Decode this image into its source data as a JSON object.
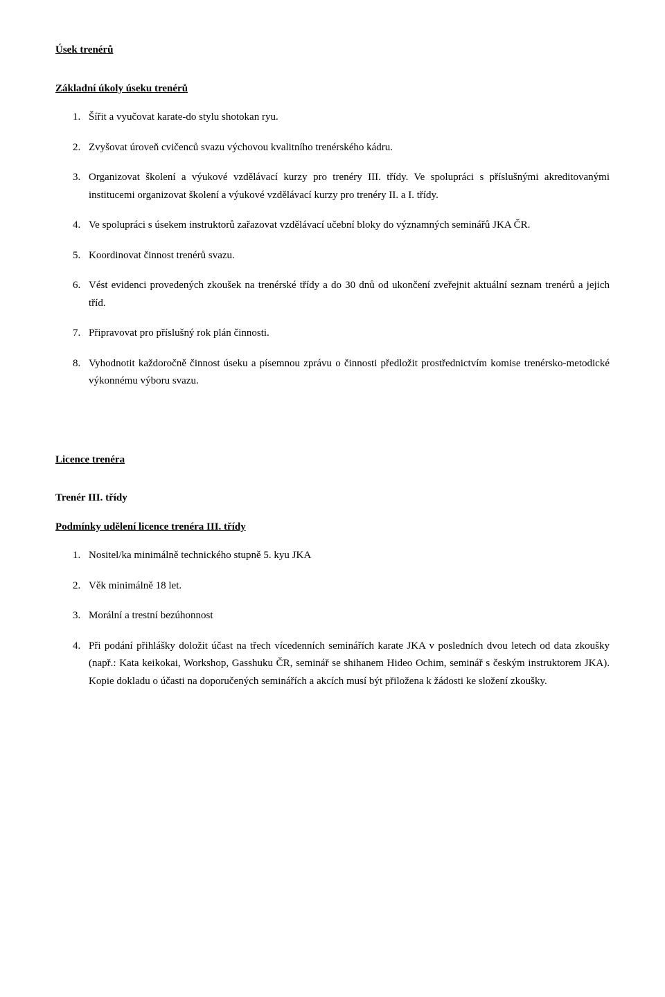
{
  "font": {
    "family": "Times New Roman",
    "size_pt": 15,
    "color": "#000000"
  },
  "background_color": "#ffffff",
  "section1": {
    "title": "Úsek trenérů",
    "subtitle": "Základní úkoly úseku trenérů",
    "items": [
      "Šířit a vyučovat karate-do stylu shotokan ryu.",
      "Zvyšovat úroveň cvičenců svazu výchovou kvalitního trenérského kádru.",
      "Organizovat školení a výukové vzdělávací kurzy pro trenéry III. třídy. Ve spolupráci s příslušnými akreditovanými institucemi organizovat školení a výukové vzdělávací kurzy pro trenéry II. a I. třídy.",
      "Ve spolupráci s úsekem instruktorů zařazovat vzdělávací učební bloky do významných seminářů JKA ČR.",
      "Koordinovat činnost trenérů svazu.",
      "Vést evidenci provedených zkoušek na trenérské třídy a do 30 dnů od ukončení zveřejnit aktuální seznam trenérů a jejich tříd.",
      "Připravovat pro příslušný rok plán činnosti.",
      "Vyhodnotit každoročně činnost úseku a písemnou zprávu o činnosti předložit prostřednictvím komise trenérsko-metodické výkonnému výboru svazu."
    ]
  },
  "section2": {
    "title": "Licence trenéra",
    "subtitle": "Trenér III. třídy",
    "conditions_title": "Podmínky udělení licence trenéra III. třídy",
    "items": [
      "Nositel/ka minimálně technického stupně 5. kyu JKA",
      " Věk minimálně 18 let.",
      " Morální a trestní bezúhonnost",
      "Při podání přihlášky doložit účast na třech vícedenních seminářích karate JKA v posledních dvou letech od data zkoušky (např.: Kata keikokai, Workshop,  Gasshuku ČR, seminář se shihanem Hideo Ochim, seminář s českým instruktorem JKA). Kopie dokladu o účasti na doporučených seminářích a akcích musí být přiložena k žádosti ke složení zkoušky."
    ]
  }
}
